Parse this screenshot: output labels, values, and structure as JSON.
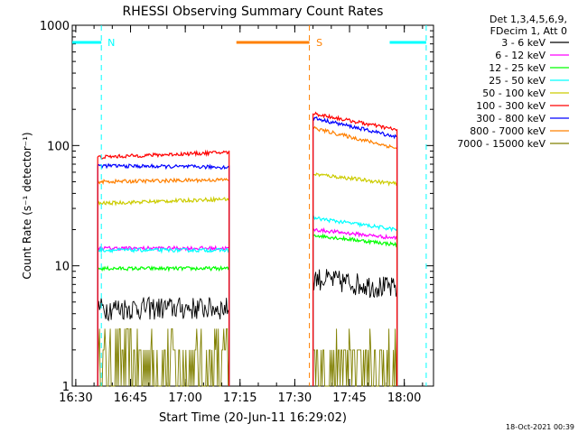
{
  "chart_data": {
    "type": "line",
    "title": "RHESSI Observing Summary Count Rates",
    "xlabel": "Start Time (20-Jun-11 16:29:02)",
    "ylabel": "Count Rate (s⁻¹ detector⁻¹)",
    "yscale": "log",
    "ylim": [
      1,
      1000
    ],
    "xlim": [
      "16:29:02",
      "18:08:00"
    ],
    "x_tick_labels": [
      "16:30",
      "16:45",
      "17:00",
      "17:15",
      "17:30",
      "17:45",
      "18:00"
    ],
    "y_tick_labels": [
      "1",
      "10",
      "100",
      "1000"
    ],
    "legend_position": "top-right",
    "legend_header": [
      "Det 1,3,4,5,6,9,",
      "FDecim 1, Att 0"
    ],
    "footer_date": "18-Oct-2021 00:39",
    "data_intervals": [
      [
        "16:36",
        "17:12"
      ],
      [
        "17:35",
        "17:58"
      ]
    ],
    "series": [
      {
        "name": "3 - 6 keV",
        "color": "#000000",
        "values": [
          [
            4.5,
            4.5
          ],
          [
            8.0,
            6.5
          ]
        ]
      },
      {
        "name": "6 - 12 keV",
        "color": "#ff00ff",
        "values": [
          [
            14,
            14
          ],
          [
            20,
            17
          ]
        ]
      },
      {
        "name": "12 - 25 keV",
        "color": "#00ff00",
        "values": [
          [
            9.5,
            9.5
          ],
          [
            18,
            15
          ]
        ]
      },
      {
        "name": "25 - 50 keV",
        "color": "#00ffff",
        "values": [
          [
            13.5,
            13.5
          ],
          [
            25,
            20
          ]
        ]
      },
      {
        "name": "50 - 100 keV",
        "color": "#cccc00",
        "values": [
          [
            33,
            36
          ],
          [
            58,
            48
          ]
        ]
      },
      {
        "name": "100 - 300 keV",
        "color": "#ff0000",
        "values": [
          [
            80,
            88
          ],
          [
            185,
            135
          ]
        ]
      },
      {
        "name": "300 - 800 keV",
        "color": "#0000ff",
        "values": [
          [
            68,
            66
          ],
          [
            170,
            118
          ]
        ]
      },
      {
        "name": "800 - 7000 keV",
        "color": "#ff8000",
        "values": [
          [
            50,
            52
          ],
          [
            140,
            95
          ]
        ]
      },
      {
        "name": "7000 - 15000 keV",
        "color": "#808000",
        "values": [
          [
            1.8,
            2.5
          ],
          [
            1.8,
            2.5
          ]
        ]
      }
    ],
    "annotations": [
      {
        "label": "N",
        "color": "#00ffff",
        "start": "16:29",
        "end": "16:37",
        "marker": "16:37"
      },
      {
        "label": "S",
        "color": "#ff8000",
        "start": "17:14",
        "end": "17:34",
        "marker": "17:34"
      },
      {
        "label": "",
        "color": "#00ffff",
        "start": "17:56",
        "end": "18:06",
        "marker": "18:06"
      }
    ]
  }
}
